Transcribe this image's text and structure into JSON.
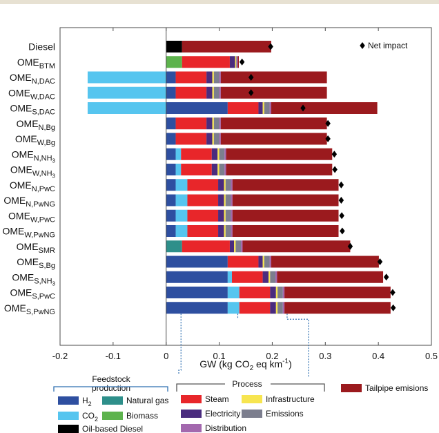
{
  "chart_data": {
    "type": "bar",
    "orientation": "horizontal",
    "stacked": true,
    "xlabel_parts": [
      "GW (kg CO",
      "2",
      " eq km",
      "-1",
      ")"
    ],
    "xlim": [
      -0.2,
      0.5
    ],
    "xticks": [
      "-0.2",
      "-0.1",
      "0",
      "0.1",
      "0.2",
      "0.3",
      "0.4",
      "0.5"
    ],
    "xtick_values": [
      -0.2,
      -0.1,
      0,
      0.1,
      0.2,
      0.3,
      0.4,
      0.5
    ],
    "grid": false,
    "categories": [
      {
        "base": "Diesel",
        "sub": ""
      },
      {
        "base": "OME",
        "sub": "BTM"
      },
      {
        "base": "OME",
        "sub": "N,DAC"
      },
      {
        "base": "OME",
        "sub": "W,DAC"
      },
      {
        "base": "OME",
        "sub": "S,DAC"
      },
      {
        "base": "OME",
        "sub": "N,Bg"
      },
      {
        "base": "OME",
        "sub": "W,Bg"
      },
      {
        "base": "OME",
        "sub": "N,NH3",
        "subscript_part": "3"
      },
      {
        "base": "OME",
        "sub": "W,NH3",
        "subscript_part": "3"
      },
      {
        "base": "OME",
        "sub": "N,PwC"
      },
      {
        "base": "OME",
        "sub": "N,PwNG"
      },
      {
        "base": "OME",
        "sub": "W,PwC"
      },
      {
        "base": "OME",
        "sub": "W,PwNG"
      },
      {
        "base": "OME",
        "sub": "SMR"
      },
      {
        "base": "OME",
        "sub": "S,Bg"
      },
      {
        "base": "OME",
        "sub": "S,NH3",
        "subscript_part": "3"
      },
      {
        "base": "OME",
        "sub": "S,PwC"
      },
      {
        "base": "OME",
        "sub": "S,PwNG"
      }
    ],
    "series": [
      {
        "name": "H2",
        "key": "h2",
        "color": "#2e4fa0",
        "values": [
          0,
          0,
          0.018,
          0.018,
          0.116,
          0.018,
          0.018,
          0.018,
          0.018,
          0.018,
          0.018,
          0.018,
          0.018,
          0,
          0.116,
          0.116,
          0.116,
          0.116
        ]
      },
      {
        "name": "CO2",
        "key": "co2",
        "color": "#56c5ef",
        "values": [
          0,
          0,
          -0.148,
          -0.148,
          -0.148,
          0,
          0,
          0.01,
          0.01,
          0.022,
          0.022,
          0.022,
          0.022,
          0,
          0,
          0.008,
          0.022,
          0.022
        ]
      },
      {
        "name": "Natural gas",
        "key": "ng",
        "color": "#2e8f8a",
        "values": [
          0,
          0,
          0,
          0,
          0,
          0,
          0,
          0,
          0,
          0,
          0,
          0,
          0,
          0.03,
          0,
          0,
          0,
          0
        ]
      },
      {
        "name": "Biomass",
        "key": "biomass",
        "color": "#5db34d",
        "values": [
          0,
          0.03,
          0,
          0,
          0,
          0,
          0,
          0,
          0,
          0,
          0,
          0,
          0,
          0,
          0,
          0,
          0,
          0
        ]
      },
      {
        "name": "Oil-based Diesel",
        "key": "oil",
        "color": "#000000",
        "values": [
          0.03,
          0,
          0,
          0,
          0,
          0,
          0,
          0,
          0,
          0,
          0,
          0,
          0,
          0,
          0,
          0,
          0,
          0
        ]
      },
      {
        "name": "Steam",
        "key": "steam",
        "color": "#e8262a",
        "values": [
          0,
          0.09,
          0.058,
          0.058,
          0.058,
          0.058,
          0.058,
          0.058,
          0.058,
          0.058,
          0.058,
          0.058,
          0.058,
          0.09,
          0.058,
          0.058,
          0.058,
          0.058
        ]
      },
      {
        "name": "Electricity",
        "key": "elec",
        "color": "#4a2c7e",
        "values": [
          0,
          0.01,
          0.011,
          0.011,
          0.008,
          0.011,
          0.011,
          0.011,
          0.011,
          0.011,
          0.011,
          0.011,
          0.011,
          0.008,
          0.008,
          0.011,
          0.011,
          0.011
        ]
      },
      {
        "name": "Infrastructure",
        "key": "infra",
        "color": "#f7e550",
        "values": [
          0,
          0.002,
          0.003,
          0.003,
          0.003,
          0.003,
          0.003,
          0.003,
          0.003,
          0.003,
          0.003,
          0.003,
          0.003,
          0.003,
          0.003,
          0.003,
          0.003,
          0.003
        ]
      },
      {
        "name": "Emissions",
        "key": "emis",
        "color": "#7c7e8e",
        "values": [
          0,
          0.001,
          0.01,
          0.01,
          0.01,
          0.01,
          0.01,
          0.01,
          0.01,
          0.01,
          0.01,
          0.01,
          0.01,
          0.01,
          0.01,
          0.01,
          0.01,
          0.01
        ]
      },
      {
        "name": "Distribution",
        "key": "dist",
        "color": "#a368ae",
        "values": [
          0,
          0.002,
          0.003,
          0.003,
          0.003,
          0.003,
          0.003,
          0.003,
          0.003,
          0.003,
          0.003,
          0.003,
          0.003,
          0.003,
          0.003,
          0.003,
          0.003,
          0.003
        ]
      },
      {
        "name": "Tailpipe emisions",
        "key": "tail",
        "color": "#9b1a1e",
        "values": [
          0.168,
          0.002,
          0.2,
          0.2,
          0.2,
          0.2,
          0.2,
          0.2,
          0.2,
          0.2,
          0.2,
          0.2,
          0.2,
          0.203,
          0.203,
          0.2,
          0.2,
          0.2
        ]
      }
    ],
    "net_impact": {
      "name": "Net impact",
      "values": [
        0.197,
        0.143,
        0.16,
        0.16,
        0.258,
        0.305,
        0.305,
        0.317,
        0.318,
        0.33,
        0.33,
        0.331,
        0.332,
        0.347,
        0.403,
        0.415,
        0.427,
        0.428
      ]
    },
    "legend_groups": [
      {
        "title": "Feedstock production",
        "items": [
          {
            "label": "H2",
            "key": "h2"
          },
          {
            "label": "Natural gas",
            "key": "ng"
          },
          {
            "label": "CO2",
            "key": "co2"
          },
          {
            "label": "Biomass",
            "key": "biomass"
          },
          {
            "label": "Oil-based Diesel",
            "key": "oil"
          }
        ]
      },
      {
        "title": "Process",
        "items": [
          {
            "label": "Steam",
            "key": "steam"
          },
          {
            "label": "Infrastructure",
            "key": "infra"
          },
          {
            "label": "Electricity",
            "key": "elec"
          },
          {
            "label": "Emissions",
            "key": "emis"
          },
          {
            "label": "Distribution",
            "key": "dist"
          }
        ]
      }
    ],
    "legend_tail": {
      "label": "Tailpipe emisions",
      "key": "tail"
    },
    "legend_net": {
      "label": "Net impact"
    }
  }
}
